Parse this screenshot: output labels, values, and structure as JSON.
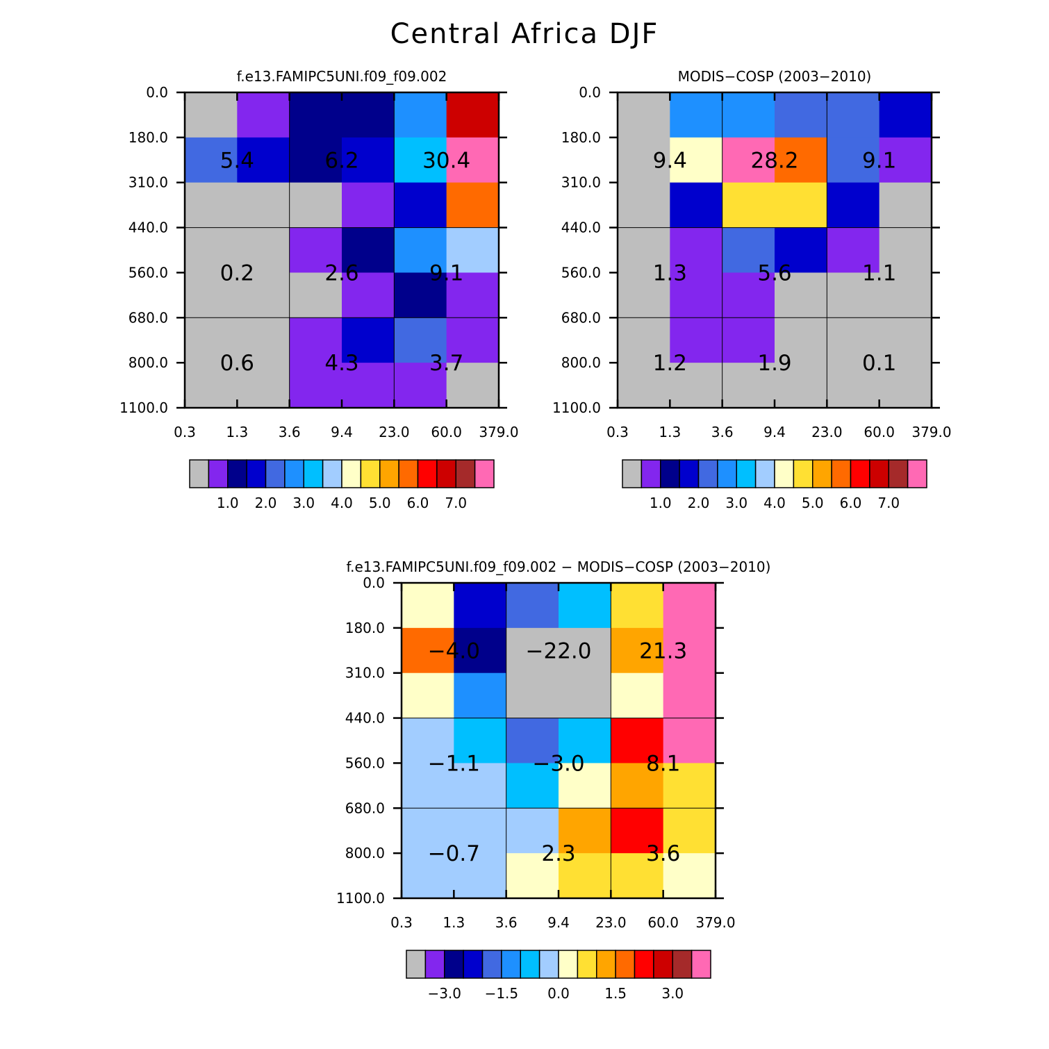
{
  "title": "Central Africa DJF",
  "colors": {
    "gray": "#bebebe",
    "purple": "#8326ee",
    "navy": "#00008b",
    "blue": "#0000cd",
    "royal": "#4169e1",
    "dodger": "#1e90ff",
    "sky": "#00bfff",
    "lightsky": "#a2cdff",
    "cream": "#ffffc8",
    "gold": "#ffe033",
    "orange": "#ffa500",
    "darkorange": "#ff6a00",
    "red": "#ff0000",
    "crimson": "#cd0000",
    "brown": "#a52a2a",
    "pink": "#ff69b4"
  },
  "colorbar": {
    "colors": [
      "gray",
      "purple",
      "navy",
      "blue",
      "royal",
      "dodger",
      "sky",
      "lightsky",
      "cream",
      "gold",
      "orange",
      "darkorange",
      "red",
      "crimson",
      "brown",
      "pink"
    ],
    "labels_abs": [
      "1.0",
      "2.0",
      "3.0",
      "4.0",
      "5.0",
      "6.0",
      "7.0"
    ],
    "labels_diff": [
      "-3.0",
      "-1.5",
      "0.0",
      "1.5",
      "3.0"
    ]
  },
  "chart_data": [
    {
      "type": "heatmap",
      "title": "f.e13.FAMIPC5UNI.f09_f09.002",
      "x_ticks": [
        "0.3",
        "1.3",
        "3.6",
        "9.4",
        "23.0",
        "60.0",
        "379.0"
      ],
      "y_ticks": [
        "0.0",
        "180.0",
        "310.0",
        "440.0",
        "560.0",
        "680.0",
        "800.0",
        "1100.0"
      ],
      "colorbar_labels": "abs",
      "cells": [
        [
          "gray",
          "purple",
          "navy",
          "navy",
          "dodger",
          "crimson"
        ],
        [
          "royal",
          "blue",
          "navy",
          "blue",
          "sky",
          "pink"
        ],
        [
          "gray",
          "gray",
          "gray",
          "purple",
          "blue",
          "darkorange"
        ],
        [
          "gray",
          "gray",
          "purple",
          "navy",
          "dodger",
          "lightsky"
        ],
        [
          "gray",
          "gray",
          "gray",
          "purple",
          "navy",
          "purple"
        ],
        [
          "gray",
          "gray",
          "purple",
          "blue",
          "royal",
          "purple"
        ],
        [
          "gray",
          "gray",
          "purple",
          "purple",
          "purple",
          "gray"
        ]
      ],
      "block_totals": [
        [
          "5.4",
          "6.2",
          "30.4"
        ],
        [
          "0.2",
          "2.6",
          "9.1"
        ],
        [
          "0.6",
          "4.3",
          "3.7"
        ]
      ]
    },
    {
      "type": "heatmap",
      "title": "MODIS-COSP (2003-2010)",
      "x_ticks": [
        "0.3",
        "1.3",
        "3.6",
        "9.4",
        "23.0",
        "60.0",
        "379.0"
      ],
      "y_ticks": [
        "0.0",
        "180.0",
        "310.0",
        "440.0",
        "560.0",
        "680.0",
        "800.0",
        "1100.0"
      ],
      "colorbar_labels": "abs",
      "cells": [
        [
          "gray",
          "dodger",
          "dodger",
          "royal",
          "royal",
          "blue"
        ],
        [
          "gray",
          "cream",
          "pink",
          "darkorange",
          "royal",
          "purple"
        ],
        [
          "gray",
          "blue",
          "gold",
          "gold",
          "blue",
          "gray"
        ],
        [
          "gray",
          "purple",
          "royal",
          "blue",
          "purple",
          "gray"
        ],
        [
          "gray",
          "purple",
          "purple",
          "gray",
          "gray",
          "gray"
        ],
        [
          "gray",
          "purple",
          "purple",
          "gray",
          "gray",
          "gray"
        ],
        [
          "gray",
          "gray",
          "gray",
          "gray",
          "gray",
          "gray"
        ]
      ],
      "block_totals": [
        [
          "9.4",
          "28.2",
          "9.1"
        ],
        [
          "1.3",
          "5.6",
          "1.1"
        ],
        [
          "1.2",
          "1.9",
          "0.1"
        ]
      ]
    },
    {
      "type": "heatmap",
      "title": "f.e13.FAMIPC5UNI.f09_f09.002 - MODIS-COSP (2003-2010)",
      "x_ticks": [
        "0.3",
        "1.3",
        "3.6",
        "9.4",
        "23.0",
        "60.0",
        "379.0"
      ],
      "y_ticks": [
        "0.0",
        "180.0",
        "310.0",
        "440.0",
        "560.0",
        "680.0",
        "800.0",
        "1100.0"
      ],
      "colorbar_labels": "diff",
      "cells": [
        [
          "cream",
          "blue",
          "royal",
          "sky",
          "gold",
          "pink"
        ],
        [
          "darkorange",
          "navy",
          "gray",
          "gray",
          "orange",
          "pink"
        ],
        [
          "cream",
          "dodger",
          "gray",
          "gray",
          "cream",
          "pink"
        ],
        [
          "lightsky",
          "sky",
          "royal",
          "sky",
          "red",
          "pink"
        ],
        [
          "lightsky",
          "lightsky",
          "sky",
          "cream",
          "orange",
          "gold"
        ],
        [
          "lightsky",
          "lightsky",
          "lightsky",
          "orange",
          "red",
          "gold"
        ],
        [
          "lightsky",
          "lightsky",
          "cream",
          "gold",
          "gold",
          "cream"
        ]
      ],
      "block_totals": [
        [
          "-4.0",
          "-22.0",
          "21.3"
        ],
        [
          "-1.1",
          "-3.0",
          "8.1"
        ],
        [
          "-0.7",
          "2.3",
          "3.6"
        ]
      ]
    }
  ]
}
